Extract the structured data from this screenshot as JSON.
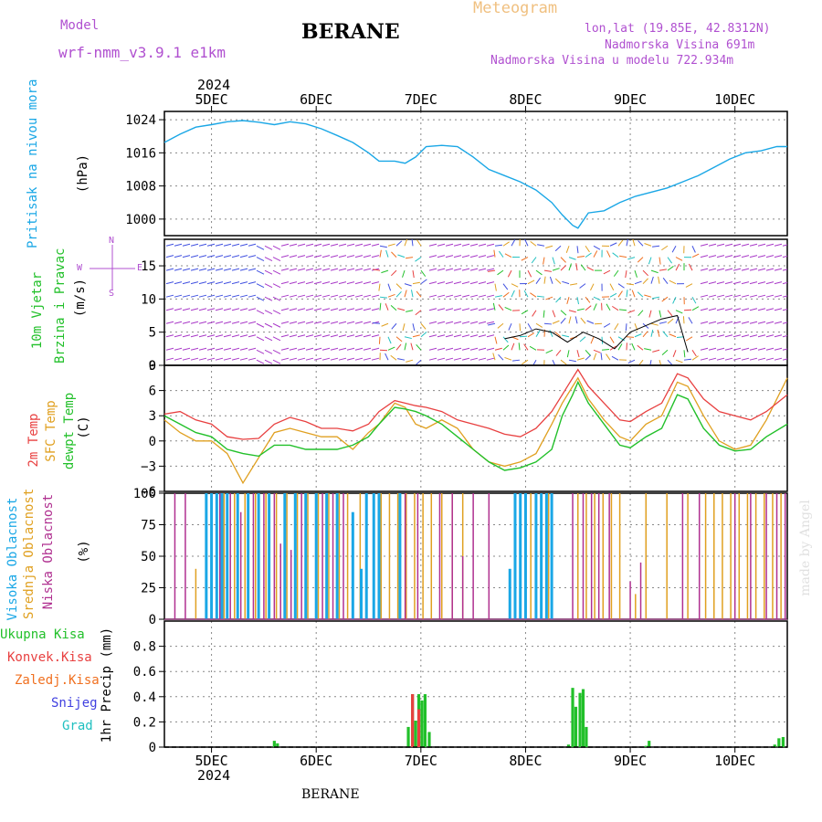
{
  "header": {
    "model_label": "Model",
    "model_name": "wrf-nmm_v3.9.1 e1km",
    "app_title": "Meteogram",
    "station": "BERANE",
    "coords": "lon,lat (19.85E, 42.8312N)",
    "elevation": "Nadmorska Visina 691m",
    "model_elevation": "Nadmorska Visina u modelu 722.934m",
    "footer_station": "BERANE",
    "watermark": "made by Angel"
  },
  "colors": {
    "pressure": "#1aa7e6",
    "wind_label": "#22c02a",
    "wind_dir": "#a838c8",
    "temp2m": "#e84040",
    "sfc": "#e0a020",
    "dew": "#22c02a",
    "high": "#1aa7e6",
    "mid": "#e0a020",
    "low": "#b03090",
    "precip_total": "#22c02a",
    "precip_conv": "#e84040",
    "precip_frz": "#f07020",
    "snow": "#4040e0",
    "hail": "#20c0c0",
    "title_orange": "#f0c080",
    "purple": "#b050d0"
  },
  "chart_data": {
    "type": "meteogram",
    "x_axis": {
      "top_year": "2024",
      "bottom_year": "2024",
      "ticks": [
        "5DEC",
        "6DEC",
        "7DEC",
        "8DEC",
        "9DEC",
        "10DEC"
      ],
      "range_days": [
        4.55,
        10.5
      ]
    },
    "pressure": {
      "label": "Pritisak na nivou mora",
      "unit": "(hPa)",
      "ylim": [
        996,
        1026
      ],
      "ticks": [
        "1024",
        "1016",
        "1008",
        "1000"
      ],
      "tick_values": [
        1024,
        1016,
        1008,
        1000
      ],
      "x": [
        4.55,
        4.7,
        4.85,
        5.0,
        5.15,
        5.3,
        5.45,
        5.6,
        5.75,
        5.9,
        6.05,
        6.2,
        6.35,
        6.5,
        6.6,
        6.75,
        6.85,
        6.95,
        7.05,
        7.2,
        7.35,
        7.5,
        7.65,
        7.8,
        7.95,
        8.1,
        8.25,
        8.35,
        8.45,
        8.5,
        8.6,
        8.75,
        8.9,
        9.05,
        9.2,
        9.35,
        9.5,
        9.65,
        9.8,
        9.95,
        10.1,
        10.25,
        10.4,
        10.5
      ],
      "values": [
        1018.5,
        1020.5,
        1022.2,
        1022.8,
        1023.5,
        1023.8,
        1023.4,
        1022.8,
        1023.5,
        1023,
        1021.8,
        1020.2,
        1018.5,
        1016,
        1014,
        1014,
        1013.5,
        1015,
        1017.5,
        1017.8,
        1017.5,
        1015,
        1012,
        1010.5,
        1009,
        1007,
        1004,
        1001,
        998.5,
        997.8,
        1001.5,
        1002,
        1004,
        1005.5,
        1006.5,
        1007.5,
        1009,
        1010.5,
        1012.5,
        1014.5,
        1016,
        1016.5,
        1017.5,
        1017.5
      ]
    },
    "wind": {
      "label_line1": "10m Vjetar",
      "label_line2": "Brzina i Pravac",
      "unit": "(m/s)",
      "compass": {
        "n": "N",
        "w": "W",
        "e": "E",
        "s": "S"
      },
      "ylim": [
        0,
        19
      ],
      "ticks": [
        "15",
        "10",
        "5",
        "0"
      ],
      "tick_values": [
        15,
        10,
        5,
        0
      ],
      "speed_x": [
        7.8,
        7.95,
        8.1,
        8.25,
        8.4,
        8.55,
        8.7,
        8.85,
        9.0,
        9.15,
        9.3,
        9.45,
        9.55
      ],
      "speed_values": [
        4,
        4.5,
        5.5,
        5,
        3.5,
        5,
        4,
        2.5,
        5,
        6,
        7,
        7.5,
        2
      ]
    },
    "temperature": {
      "label_2m": "2m Temp",
      "label_sfc": "SFC Temp",
      "label_dew": "dewpt Temp",
      "unit": "(C)",
      "ylim": [
        -6,
        9
      ],
      "ticks": [
        "9",
        "6",
        "3",
        "0",
        "−3",
        "−6"
      ],
      "tick_values": [
        9,
        6,
        3,
        0,
        -3,
        -6
      ],
      "x": [
        4.55,
        4.7,
        4.85,
        5.0,
        5.15,
        5.3,
        5.45,
        5.6,
        5.75,
        5.9,
        6.05,
        6.2,
        6.35,
        6.5,
        6.6,
        6.75,
        6.85,
        6.95,
        7.05,
        7.2,
        7.35,
        7.5,
        7.65,
        7.8,
        7.95,
        8.1,
        8.25,
        8.35,
        8.45,
        8.5,
        8.6,
        8.75,
        8.9,
        9.0,
        9.15,
        9.3,
        9.45,
        9.55,
        9.7,
        9.85,
        10.0,
        10.15,
        10.3,
        10.5
      ],
      "t2m": [
        3.2,
        3.5,
        2.5,
        2.0,
        0.5,
        0.2,
        0.3,
        2.0,
        2.8,
        2.3,
        1.5,
        1.5,
        1.2,
        2.0,
        3.5,
        4.8,
        4.5,
        4.2,
        4.0,
        3.5,
        2.5,
        2.0,
        1.5,
        0.8,
        0.5,
        1.5,
        3.5,
        5.5,
        7.5,
        8.5,
        6.5,
        4.5,
        2.5,
        2.3,
        3.5,
        4.5,
        8.0,
        7.5,
        5.0,
        3.5,
        3.0,
        2.5,
        3.5,
        5.5
      ],
      "sfc": [
        2.5,
        1.0,
        0.0,
        0.0,
        -1.5,
        -5.0,
        -2.0,
        1.0,
        1.5,
        1.0,
        0.5,
        0.5,
        -1.0,
        1.0,
        2.0,
        4.5,
        4.0,
        2.0,
        1.5,
        2.5,
        1.5,
        -1.0,
        -2.5,
        -3.0,
        -2.5,
        -1.5,
        2.0,
        4.5,
        6.5,
        7.5,
        5.0,
        2.5,
        0.5,
        0.0,
        2.0,
        3.0,
        7.0,
        6.5,
        3.0,
        0.0,
        -1.0,
        -0.5,
        2.5,
        7.5
      ],
      "dew": [
        3.0,
        2.0,
        1.0,
        0.5,
        -1.0,
        -1.5,
        -1.8,
        -0.5,
        -0.5,
        -1.0,
        -1.0,
        -1.0,
        -0.5,
        0.5,
        2.0,
        4.0,
        3.8,
        3.5,
        3.0,
        2.0,
        0.5,
        -1.0,
        -2.5,
        -3.5,
        -3.2,
        -2.5,
        -1.0,
        3.0,
        5.5,
        7.0,
        4.5,
        2.0,
        -0.5,
        -0.8,
        0.5,
        1.5,
        5.5,
        5.0,
        1.5,
        -0.5,
        -1.2,
        -1.0,
        0.5,
        2.0
      ]
    },
    "clouds": {
      "label_high": "Visoka Oblacnost",
      "label_mid": "Srednja Oblacnost",
      "label_low": "Niska Oblacnost",
      "unit": "(%)",
      "ylim": [
        0,
        100
      ],
      "ticks": [
        "100",
        "75",
        "50",
        "25",
        "0"
      ],
      "tick_values": [
        100,
        75,
        50,
        25,
        0
      ],
      "high_bars": [
        [
          4.95,
          100
        ],
        [
          5.0,
          100
        ],
        [
          5.05,
          100
        ],
        [
          5.1,
          100
        ],
        [
          5.15,
          100
        ],
        [
          5.25,
          100
        ],
        [
          5.35,
          100
        ],
        [
          5.45,
          100
        ],
        [
          5.55,
          100
        ],
        [
          5.7,
          100
        ],
        [
          5.8,
          100
        ],
        [
          5.9,
          100
        ],
        [
          6.0,
          100
        ],
        [
          6.1,
          100
        ],
        [
          6.2,
          100
        ],
        [
          6.35,
          85
        ],
        [
          6.43,
          40
        ],
        [
          6.48,
          100
        ],
        [
          6.55,
          100
        ],
        [
          6.6,
          100
        ],
        [
          6.8,
          100
        ],
        [
          7.85,
          40
        ],
        [
          7.9,
          100
        ],
        [
          7.95,
          100
        ],
        [
          8.0,
          100
        ],
        [
          8.1,
          100
        ],
        [
          8.15,
          100
        ],
        [
          8.2,
          100
        ],
        [
          8.25,
          100
        ]
      ],
      "mid_bars": [
        [
          4.85,
          40
        ],
        [
          5.0,
          100
        ],
        [
          5.12,
          100
        ],
        [
          5.22,
          100
        ],
        [
          5.32,
          100
        ],
        [
          5.42,
          100
        ],
        [
          5.52,
          100
        ],
        [
          5.62,
          100
        ],
        [
          5.72,
          100
        ],
        [
          5.82,
          100
        ],
        [
          5.92,
          100
        ],
        [
          6.02,
          100
        ],
        [
          6.12,
          100
        ],
        [
          6.22,
          100
        ],
        [
          6.3,
          100
        ],
        [
          6.42,
          100
        ],
        [
          6.62,
          100
        ],
        [
          6.7,
          100
        ],
        [
          6.78,
          100
        ],
        [
          6.86,
          100
        ],
        [
          6.94,
          100
        ],
        [
          7.02,
          100
        ],
        [
          7.1,
          100
        ],
        [
          7.2,
          100
        ],
        [
          7.3,
          100
        ],
        [
          7.4,
          100
        ],
        [
          8.05,
          100
        ],
        [
          8.22,
          100
        ],
        [
          8.5,
          100
        ],
        [
          8.58,
          100
        ],
        [
          8.66,
          100
        ],
        [
          8.74,
          100
        ],
        [
          8.82,
          100
        ],
        [
          8.9,
          100
        ],
        [
          9.05,
          20
        ],
        [
          9.15,
          100
        ],
        [
          9.35,
          100
        ],
        [
          9.55,
          100
        ],
        [
          9.72,
          100
        ],
        [
          9.8,
          100
        ],
        [
          9.88,
          100
        ],
        [
          9.96,
          100
        ],
        [
          10.04,
          100
        ],
        [
          10.12,
          100
        ],
        [
          10.2,
          100
        ],
        [
          10.28,
          100
        ],
        [
          10.36,
          100
        ],
        [
          10.44,
          100
        ]
      ],
      "low_bars": [
        [
          4.65,
          100
        ],
        [
          4.75,
          100
        ],
        [
          4.95,
          100
        ],
        [
          5.08,
          100
        ],
        [
          5.18,
          100
        ],
        [
          5.28,
          85
        ],
        [
          5.4,
          100
        ],
        [
          5.5,
          100
        ],
        [
          5.6,
          100
        ],
        [
          5.66,
          60
        ],
        [
          5.76,
          55
        ],
        [
          5.86,
          100
        ],
        [
          6.06,
          100
        ],
        [
          6.16,
          100
        ],
        [
          6.26,
          100
        ],
        [
          6.85,
          100
        ],
        [
          6.97,
          100
        ],
        [
          7.18,
          100
        ],
        [
          7.3,
          100
        ],
        [
          7.4,
          50
        ],
        [
          7.5,
          100
        ],
        [
          7.65,
          100
        ],
        [
          8.45,
          100
        ],
        [
          8.55,
          100
        ],
        [
          8.63,
          100
        ],
        [
          8.7,
          100
        ],
        [
          8.8,
          100
        ],
        [
          9.0,
          30
        ],
        [
          9.1,
          45
        ],
        [
          9.5,
          100
        ],
        [
          9.66,
          100
        ],
        [
          10.0,
          100
        ],
        [
          10.15,
          100
        ],
        [
          10.3,
          100
        ],
        [
          10.4,
          100
        ],
        [
          10.48,
          100
        ]
      ]
    },
    "precip": {
      "label_total": "Ukupna Kisa",
      "label_conv": "Konvek.Kisa",
      "label_frz": "Zaledj.Kisa",
      "label_snow": "Snijeg",
      "label_hail": "Grad",
      "ylabel": "1hr Precip (mm)",
      "ylim": [
        0,
        1.0
      ],
      "ticks": [
        "0.8",
        "0.6",
        "0.4",
        "0.2",
        "0"
      ],
      "tick_values": [
        0.8,
        0.6,
        0.4,
        0.2,
        0
      ],
      "total_bars": [
        [
          5.6,
          0.05
        ],
        [
          5.63,
          0.03
        ],
        [
          6.88,
          0.16
        ],
        [
          6.92,
          0.42
        ],
        [
          6.95,
          0.21
        ],
        [
          6.98,
          0.42
        ],
        [
          7.01,
          0.37
        ],
        [
          7.04,
          0.42
        ],
        [
          7.08,
          0.12
        ],
        [
          8.41,
          0.02
        ],
        [
          8.45,
          0.47
        ],
        [
          8.48,
          0.32
        ],
        [
          8.52,
          0.43
        ],
        [
          8.55,
          0.46
        ],
        [
          8.58,
          0.16
        ],
        [
          9.15,
          0.01
        ],
        [
          9.18,
          0.05
        ],
        [
          10.38,
          0.02
        ],
        [
          10.42,
          0.07
        ],
        [
          10.46,
          0.08
        ]
      ],
      "conv_bars": [
        [
          6.92,
          0.42
        ],
        [
          6.98,
          0.3
        ]
      ]
    }
  }
}
